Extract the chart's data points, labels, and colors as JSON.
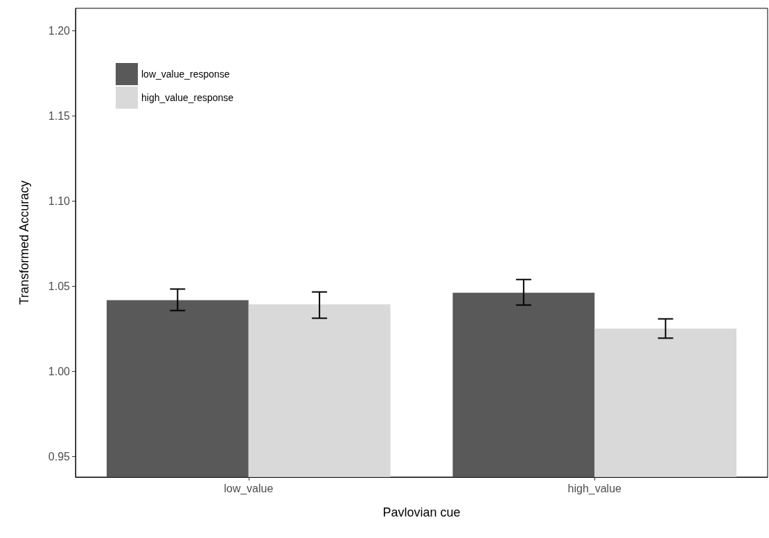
{
  "chart_data": {
    "type": "bar",
    "xlabel": "Pavlovian cue",
    "ylabel": "Transformed Accuracy",
    "categories": [
      "low_value",
      "high_value"
    ],
    "series": [
      {
        "name": "low_value_response",
        "color": "#595959",
        "values": [
          1.0418,
          1.0462
        ],
        "errors": [
          [
            1.0357,
            1.0483
          ],
          [
            1.0389,
            1.0539
          ]
        ]
      },
      {
        "name": "high_value_response",
        "color": "#d9d9d9",
        "values": [
          1.0393,
          1.0251
        ],
        "errors": [
          [
            1.0312,
            1.0466
          ],
          [
            1.0195,
            1.0308
          ]
        ]
      }
    ],
    "ylim": [
      0.938,
      1.213
    ],
    "yticks": [
      {
        "value": 0.95,
        "label": "0.95"
      },
      {
        "value": 1.0,
        "label": "1.00"
      },
      {
        "value": 1.05,
        "label": "1.05"
      },
      {
        "value": 1.1,
        "label": "1.10"
      },
      {
        "value": 1.15,
        "label": "1.15"
      },
      {
        "value": 1.2,
        "label": "1.20"
      }
    ],
    "grid": false,
    "legend": "top left"
  }
}
